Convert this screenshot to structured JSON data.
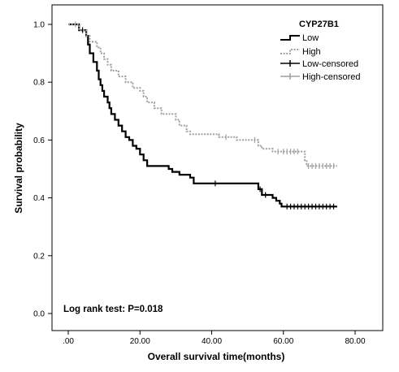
{
  "chart_data": {
    "type": "line",
    "subtype": "kaplan-meier step",
    "xlabel": "Overall survival time(months)",
    "ylabel": "Survival probability",
    "xlim": [
      0,
      80
    ],
    "ylim": [
      0,
      1
    ],
    "x_ticks": [
      ".00",
      "20.00",
      "40.00",
      "60.00",
      "80.00"
    ],
    "y_ticks": [
      "0.0",
      "0.2",
      "0.4",
      "0.6",
      "0.8",
      "1.0"
    ],
    "grid": false,
    "legend": {
      "title": "CYP27B1",
      "placement": "top-right",
      "entries": [
        "Low",
        "High",
        "Low-censored",
        "High-censored"
      ]
    },
    "annotation": "Log rank test: P=0.018",
    "colors": {
      "low": "#000000",
      "high": "#a0a0a0"
    },
    "series": [
      {
        "name": "Low",
        "style": "solid",
        "points": [
          [
            0,
            1.0
          ],
          [
            3,
            0.98
          ],
          [
            5,
            0.96
          ],
          [
            5.5,
            0.93
          ],
          [
            6,
            0.9
          ],
          [
            7,
            0.87
          ],
          [
            8,
            0.84
          ],
          [
            8.5,
            0.81
          ],
          [
            9,
            0.79
          ],
          [
            9.5,
            0.77
          ],
          [
            10,
            0.75
          ],
          [
            11,
            0.73
          ],
          [
            11.5,
            0.71
          ],
          [
            12,
            0.69
          ],
          [
            13,
            0.67
          ],
          [
            14,
            0.65
          ],
          [
            15,
            0.63
          ],
          [
            16,
            0.61
          ],
          [
            17,
            0.6
          ],
          [
            18,
            0.58
          ],
          [
            19,
            0.57
          ],
          [
            20,
            0.55
          ],
          [
            21,
            0.53
          ],
          [
            22,
            0.51
          ],
          [
            25,
            0.51
          ],
          [
            28,
            0.5
          ],
          [
            29,
            0.49
          ],
          [
            31,
            0.48
          ],
          [
            34,
            0.47
          ],
          [
            35,
            0.45
          ],
          [
            52,
            0.45
          ],
          [
            53,
            0.43
          ],
          [
            54,
            0.41
          ],
          [
            57,
            0.4
          ],
          [
            58,
            0.39
          ],
          [
            59,
            0.38
          ],
          [
            59.5,
            0.37
          ],
          [
            75,
            0.37
          ]
        ],
        "censored": [
          [
            4,
            0.98
          ],
          [
            41,
            0.45
          ],
          [
            53.5,
            0.43
          ],
          [
            55,
            0.41
          ],
          [
            61,
            0.37
          ],
          [
            62,
            0.37
          ],
          [
            63,
            0.37
          ],
          [
            64,
            0.37
          ],
          [
            65,
            0.37
          ],
          [
            66,
            0.37
          ],
          [
            67,
            0.37
          ],
          [
            68,
            0.37
          ],
          [
            69,
            0.37
          ],
          [
            70,
            0.37
          ],
          [
            71,
            0.37
          ],
          [
            72,
            0.37
          ],
          [
            73,
            0.37
          ],
          [
            74,
            0.37
          ]
        ]
      },
      {
        "name": "High",
        "style": "dotted",
        "points": [
          [
            0,
            1.0
          ],
          [
            3,
            0.98
          ],
          [
            5,
            0.96
          ],
          [
            6,
            0.94
          ],
          [
            8,
            0.92
          ],
          [
            9,
            0.9
          ],
          [
            10,
            0.88
          ],
          [
            11,
            0.86
          ],
          [
            12,
            0.84
          ],
          [
            14,
            0.82
          ],
          [
            16,
            0.8
          ],
          [
            18,
            0.78
          ],
          [
            20,
            0.77
          ],
          [
            21,
            0.75
          ],
          [
            22,
            0.73
          ],
          [
            24,
            0.71
          ],
          [
            26,
            0.69
          ],
          [
            30,
            0.67
          ],
          [
            31,
            0.65
          ],
          [
            33,
            0.63
          ],
          [
            34,
            0.62
          ],
          [
            40,
            0.62
          ],
          [
            42,
            0.61
          ],
          [
            47,
            0.6
          ],
          [
            52,
            0.6
          ],
          [
            53,
            0.58
          ],
          [
            54,
            0.57
          ],
          [
            57,
            0.56
          ],
          [
            65,
            0.56
          ],
          [
            66,
            0.53
          ],
          [
            66.5,
            0.51
          ],
          [
            75,
            0.51
          ]
        ],
        "censored": [
          [
            2,
            1.0
          ],
          [
            44,
            0.61
          ],
          [
            52,
            0.6
          ],
          [
            58.5,
            0.56
          ],
          [
            60,
            0.56
          ],
          [
            61,
            0.56
          ],
          [
            62,
            0.56
          ],
          [
            63,
            0.56
          ],
          [
            64,
            0.56
          ],
          [
            67,
            0.51
          ],
          [
            68,
            0.51
          ],
          [
            69,
            0.51
          ],
          [
            70,
            0.51
          ],
          [
            71,
            0.51
          ],
          [
            72,
            0.51
          ],
          [
            73,
            0.51
          ],
          [
            74,
            0.51
          ]
        ]
      }
    ]
  }
}
